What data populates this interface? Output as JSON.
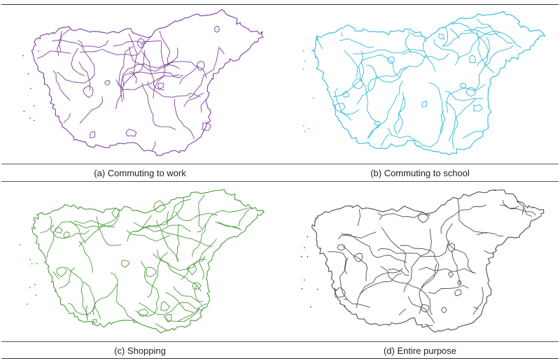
{
  "figure": {
    "panels": [
      {
        "caption": "(a) Commuting to work",
        "color": "#7b3f9a",
        "detail": 0.55
      },
      {
        "caption": "(b) Commuting to school",
        "color": "#2fb9d8",
        "detail": 0.75
      },
      {
        "caption": "(c) Shopping",
        "color": "#4a9a3a",
        "detail": 0.85
      },
      {
        "caption": "(d) Entire purpose",
        "color": "#4d4d4d",
        "detail": 0.5
      }
    ]
  }
}
